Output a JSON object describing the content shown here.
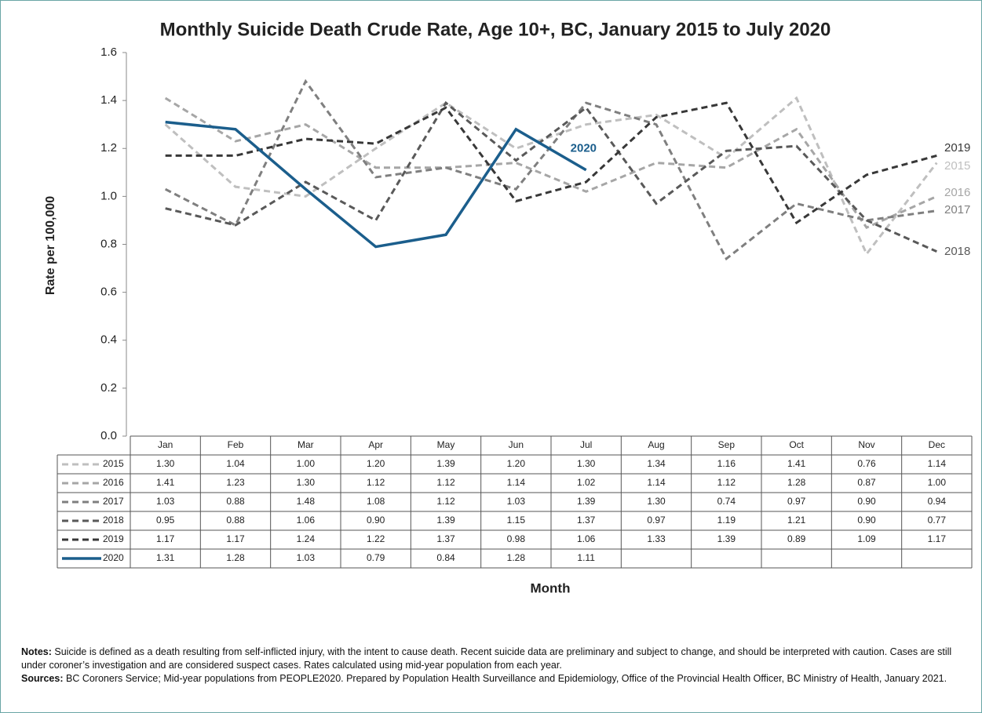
{
  "chart_data": {
    "type": "line",
    "title": "Monthly Suicide Death Crude Rate, Age 10+, BC, January 2015 to July 2020",
    "y_label": "Rate per 100,000",
    "x_label": "Month",
    "categories": [
      "Jan",
      "Feb",
      "Mar",
      "Apr",
      "May",
      "Jun",
      "Jul",
      "Aug",
      "Sep",
      "Oct",
      "Nov",
      "Dec"
    ],
    "ylim": [
      0,
      1.6
    ],
    "yticks": [
      {
        "value": 0,
        "label": "0.0"
      },
      0.2,
      0.4,
      0.6,
      0.8,
      {
        "value": 1,
        "label": "1.0"
      },
      1.2,
      1.4,
      1.6
    ],
    "grid": false,
    "series": [
      {
        "name": "2015",
        "color": "#bfbfbf",
        "dashed": true,
        "values": [
          1.3,
          1.04,
          1,
          1.2,
          1.39,
          1.2,
          1.3,
          1.34,
          1.16,
          1.41,
          0.76,
          1.14
        ],
        "value_labels": [
          "1.30",
          "1.04",
          "1.00",
          "1.20",
          "1.39",
          "1.20",
          "1.30",
          "1.34",
          "1.16",
          "1.41",
          "0.76",
          "1.14"
        ]
      },
      {
        "name": "2016",
        "color": "#a6a6a6",
        "dashed": true,
        "values": [
          1.41,
          1.23,
          1.3,
          1.12,
          1.12,
          1.14,
          1.02,
          1.14,
          1.12,
          1.28,
          0.87,
          1
        ],
        "value_labels": [
          "1.41",
          "1.23",
          "1.30",
          "1.12",
          "1.12",
          "1.14",
          "1.02",
          "1.14",
          "1.12",
          "1.28",
          "0.87",
          "1.00"
        ]
      },
      {
        "name": "2017",
        "color": "#7f7f7f",
        "dashed": true,
        "values": [
          1.03,
          0.88,
          1.48,
          1.08,
          1.12,
          1.03,
          1.39,
          1.3,
          0.74,
          0.97,
          0.9,
          0.94
        ],
        "value_labels": [
          "1.03",
          "0.88",
          "1.48",
          "1.08",
          "1.12",
          "1.03",
          "1.39",
          "1.30",
          "0.74",
          "0.97",
          "0.90",
          "0.94"
        ]
      },
      {
        "name": "2018",
        "color": "#595959",
        "dashed": true,
        "values": [
          0.95,
          0.88,
          1.06,
          0.9,
          1.39,
          1.15,
          1.37,
          0.97,
          1.19,
          1.21,
          0.9,
          0.77
        ],
        "value_labels": [
          "0.95",
          "0.88",
          "1.06",
          "0.90",
          "1.39",
          "1.15",
          "1.37",
          "0.97",
          "1.19",
          "1.21",
          "0.90",
          "0.77"
        ]
      },
      {
        "name": "2019",
        "color": "#383838",
        "dashed": true,
        "values": [
          1.17,
          1.17,
          1.24,
          1.22,
          1.37,
          0.98,
          1.06,
          1.33,
          1.39,
          0.89,
          1.09,
          1.17
        ],
        "value_labels": [
          "1.17",
          "1.17",
          "1.24",
          "1.22",
          "1.37",
          "0.98",
          "1.06",
          "1.33",
          "1.39",
          "0.89",
          "1.09",
          "1.17"
        ]
      },
      {
        "name": "2020",
        "color": "#1b5e8c",
        "dashed": false,
        "values": [
          1.31,
          1.28,
          1.03,
          0.79,
          0.84,
          1.28,
          1.11,
          null,
          null,
          null,
          null,
          null
        ],
        "value_labels": [
          "1.31",
          "1.28",
          "1.03",
          "0.79",
          "0.84",
          "1.28",
          "1.11",
          null,
          null,
          null,
          null,
          null
        ]
      }
    ],
    "notes_label": "Notes:",
    "notes": "Suicide is defined as a death resulting from self-inflicted injury, with the intent to cause death. Recent suicide data are preliminary and subject to change, and should be interpreted with caution. Cases are still under coroner’s investigation and are considered suspect cases. Rates calculated using mid-year population from each year.",
    "sources_label": "Sources:",
    "sources": "BC Coroners Service; Mid-year populations from PEOPLE2020. Prepared by Population Health Surveillance and Epidemiology, Office of the Provincial Health Officer, BC Ministry of Health, January 2021."
  }
}
